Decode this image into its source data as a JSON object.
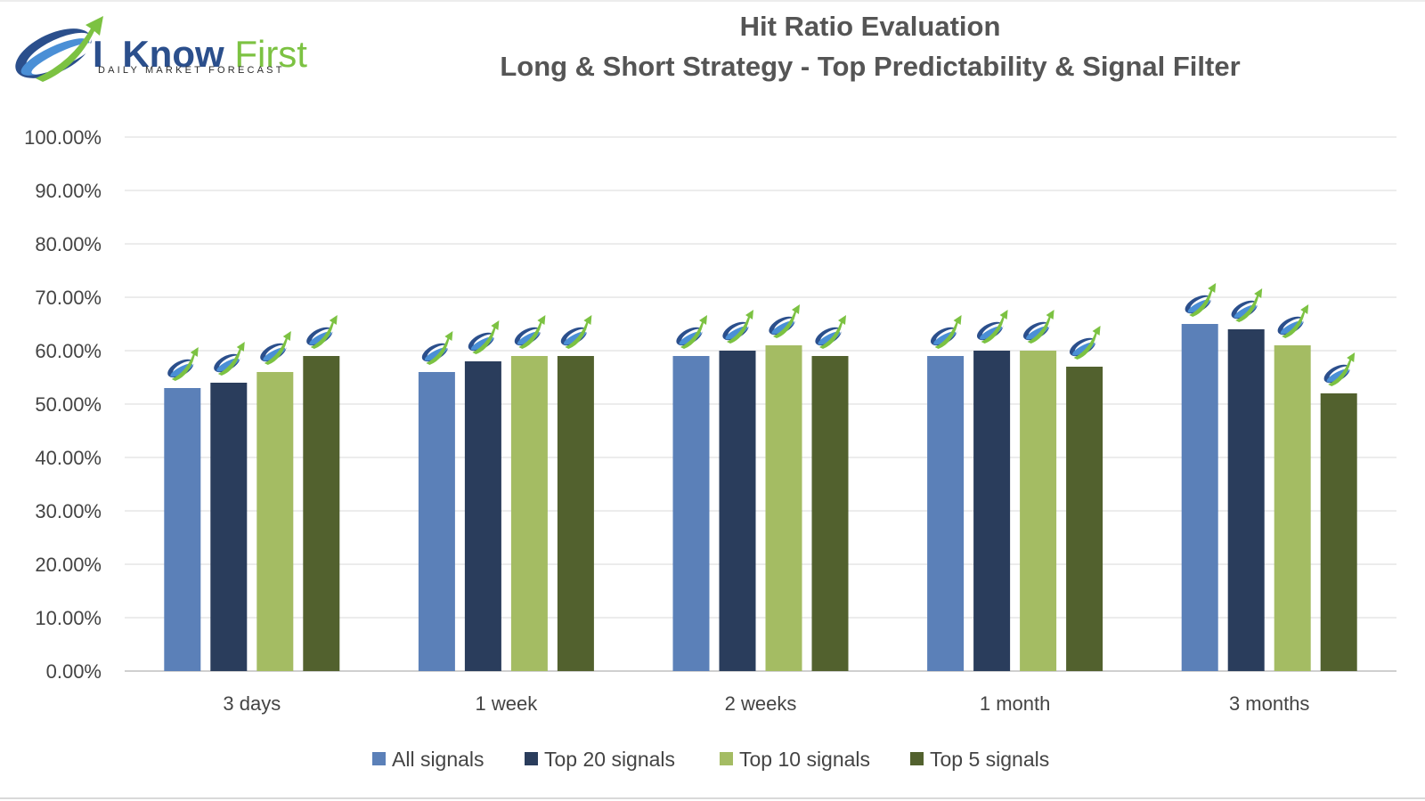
{
  "logo": {
    "word_i": "I",
    "word_know": "Know",
    "word_first": "First",
    "tagline": "Daily Market Forecast",
    "color_blue": "#2b4f8c",
    "color_green": "#7cc242"
  },
  "chart_data": {
    "type": "bar",
    "title": "Hit Ratio Evaluation",
    "subtitle": "Long & Short Strategy - Top Predictability & Signal Filter",
    "categories": [
      "3 days",
      "1 week",
      "2 weeks",
      "1 month",
      "3 months"
    ],
    "series": [
      {
        "name": "All signals",
        "color": "#5b80b8",
        "values": [
          53,
          56,
          59,
          59,
          65
        ]
      },
      {
        "name": "Top 20 signals",
        "color": "#2a3d5c",
        "values": [
          54,
          58,
          60,
          60,
          64
        ]
      },
      {
        "name": "Top 10 signals",
        "color": "#a4bc63",
        "values": [
          56,
          59,
          61,
          60,
          61
        ]
      },
      {
        "name": "Top 5 signals",
        "color": "#52612e",
        "values": [
          59,
          59,
          59,
          57,
          52
        ]
      }
    ],
    "yticks": [
      "0.00%",
      "10.00%",
      "20.00%",
      "30.00%",
      "40.00%",
      "50.00%",
      "60.00%",
      "70.00%",
      "80.00%",
      "90.00%",
      "100.00%"
    ],
    "ylim": [
      0,
      100
    ],
    "grid": true,
    "legend_position": "bottom",
    "marker_icon": "logo-swoosh-icon"
  }
}
